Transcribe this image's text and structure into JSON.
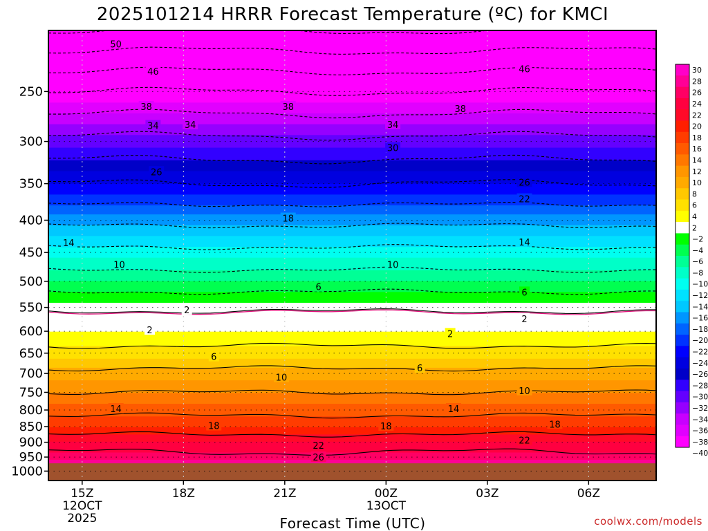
{
  "chart_data": {
    "type": "heatmap",
    "title": "2025101214 HRRR Forecast Temperature (ºC) for KMCI",
    "xlabel": "Forecast Time (UTC)",
    "ylabel": "",
    "credit": "coolwx.com/models",
    "x_ticks": [
      {
        "hour": 15,
        "lines": [
          "15Z",
          "12OCT",
          "2025"
        ]
      },
      {
        "hour": 18,
        "lines": [
          "18Z"
        ]
      },
      {
        "hour": 21,
        "lines": [
          "21Z"
        ]
      },
      {
        "hour": 24,
        "lines": [
          "00Z",
          "13OCT"
        ]
      },
      {
        "hour": 27,
        "lines": [
          "03Z"
        ]
      },
      {
        "hour": 30,
        "lines": [
          "06Z"
        ]
      }
    ],
    "xlim": [
      14,
      32
    ],
    "y_scale": "log-pressure",
    "ylim_hPa": [
      1035,
      200
    ],
    "y_ticks": [
      250,
      300,
      350,
      400,
      450,
      500,
      550,
      600,
      650,
      700,
      750,
      800,
      850,
      900,
      950,
      1000
    ],
    "surface_pressure_hPa": 972,
    "colorbar": {
      "levels": [
        "30",
        "28",
        "26",
        "24",
        "22",
        "20",
        "18",
        "16",
        "14",
        "12",
        "10",
        "8",
        "6",
        "4",
        "2",
        "−2",
        "−4",
        "−6",
        "−8",
        "−10",
        "−12",
        "−14",
        "−16",
        "−18",
        "−20",
        "−22",
        "−24",
        "−26",
        "−28",
        "−30",
        "−32",
        "−34",
        "−36",
        "−38",
        "−40"
      ],
      "colors": [
        "#ff00c8",
        "#ff0096",
        "#ff0064",
        "#ff0040",
        "#ff0a28",
        "#ff1e00",
        "#ff3c00",
        "#ff5a00",
        "#ff7800",
        "#ff9600",
        "#ffaa00",
        "#ffc800",
        "#ffe100",
        "#ffff00",
        "#ffffff",
        "#00ff00",
        "#00ff50",
        "#00ff96",
        "#00ffc8",
        "#00fff0",
        "#00e1ff",
        "#00c8ff",
        "#0096ff",
        "#0064ff",
        "#0032ff",
        "#0000ff",
        "#0000e0",
        "#0000c8",
        "#3200ff",
        "#6400ff",
        "#9600ff",
        "#c800ff",
        "#e100ff",
        "#ff00ff"
      ]
    },
    "temperature_profile": {
      "pressure_hPa": [
        200,
        250,
        300,
        350,
        400,
        450,
        500,
        550,
        565,
        600,
        650,
        700,
        750,
        800,
        850,
        900,
        950,
        972
      ],
      "temp_C": [
        -52,
        -40,
        -31,
        -24,
        -17,
        -11,
        -6,
        -1,
        1,
        2,
        5,
        9,
        12,
        15,
        18,
        22,
        25,
        27
      ]
    },
    "contour_labels": [
      {
        "value": "50",
        "hour": 16.0,
        "p": 210
      },
      {
        "value": "46",
        "hour": 17.1,
        "p": 232
      },
      {
        "value": "38",
        "hour": 16.9,
        "p": 264
      },
      {
        "value": "34",
        "hour": 17.1,
        "p": 283
      },
      {
        "value": "26",
        "hour": 17.2,
        "p": 335
      },
      {
        "value": "14",
        "hour": 14.6,
        "p": 434
      },
      {
        "value": "10",
        "hour": 16.1,
        "p": 470
      },
      {
        "value": "2",
        "hour": 18.1,
        "p": 555
      },
      {
        "value": "2",
        "hour": 17.0,
        "p": 597
      },
      {
        "value": "14",
        "hour": 16.0,
        "p": 796
      },
      {
        "value": "6",
        "hour": 18.9,
        "p": 658
      },
      {
        "value": "18",
        "hour": 18.9,
        "p": 847
      },
      {
        "value": "10",
        "hour": 20.9,
        "p": 710
      },
      {
        "value": "22",
        "hour": 22.0,
        "p": 910
      },
      {
        "value": "26",
        "hour": 22.0,
        "p": 950
      },
      {
        "value": "38",
        "hour": 21.1,
        "p": 264
      },
      {
        "value": "34",
        "hour": 18.2,
        "p": 282
      },
      {
        "value": "18",
        "hour": 21.1,
        "p": 397
      },
      {
        "value": "6",
        "hour": 22.0,
        "p": 510
      },
      {
        "value": "30",
        "hour": 24.2,
        "p": 307
      },
      {
        "value": "34",
        "hour": 24.2,
        "p": 282
      },
      {
        "value": "10",
        "hour": 24.2,
        "p": 470
      },
      {
        "value": "2",
        "hour": 25.9,
        "p": 605
      },
      {
        "value": "6",
        "hour": 25.0,
        "p": 686
      },
      {
        "value": "14",
        "hour": 26.0,
        "p": 796
      },
      {
        "value": "18",
        "hour": 24.0,
        "p": 848
      },
      {
        "value": "38",
        "hour": 26.2,
        "p": 266
      },
      {
        "value": "46",
        "hour": 28.1,
        "p": 230
      },
      {
        "value": "26",
        "hour": 28.1,
        "p": 348
      },
      {
        "value": "22",
        "hour": 28.1,
        "p": 370
      },
      {
        "value": "14",
        "hour": 28.1,
        "p": 433
      },
      {
        "value": "6",
        "hour": 28.1,
        "p": 520
      },
      {
        "value": "2",
        "hour": 28.1,
        "p": 573
      },
      {
        "value": "10",
        "hour": 28.1,
        "p": 745
      },
      {
        "value": "22",
        "hour": 28.1,
        "p": 893
      },
      {
        "value": "18",
        "hour": 29.0,
        "p": 842
      }
    ]
  }
}
